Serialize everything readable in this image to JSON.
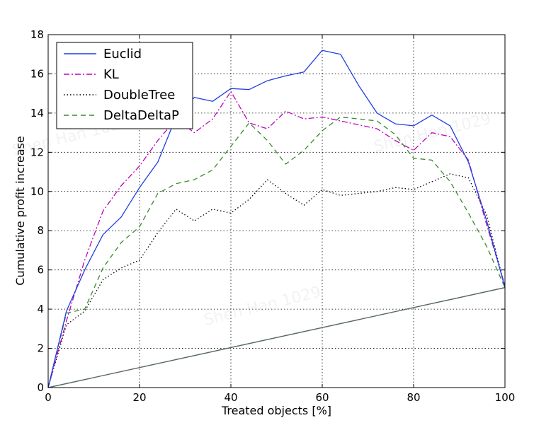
{
  "chart_data": {
    "type": "line",
    "title": "",
    "xlabel": "Treated objects [%]",
    "ylabel": "Cumulative profit increase",
    "xlim": [
      0,
      100
    ],
    "ylim": [
      0,
      18
    ],
    "xticks": [
      0,
      20,
      40,
      60,
      80,
      100
    ],
    "yticks": [
      0,
      2,
      4,
      6,
      8,
      10,
      12,
      14,
      16,
      18
    ],
    "grid": true,
    "legend_position": "top-left",
    "x": [
      0,
      4,
      8,
      12,
      16,
      20,
      24,
      28,
      32,
      36,
      40,
      44,
      48,
      52,
      56,
      60,
      64,
      68,
      72,
      76,
      80,
      84,
      88,
      92,
      96,
      100
    ],
    "series": [
      {
        "name": "Euclid",
        "color": "#1f3fe0",
        "style": "solid",
        "values": [
          0,
          3.9,
          6.0,
          7.8,
          8.7,
          10.2,
          11.5,
          13.8,
          14.8,
          14.6,
          15.25,
          15.2,
          15.65,
          15.9,
          16.1,
          17.2,
          17.0,
          15.4,
          14.0,
          13.45,
          13.35,
          13.9,
          13.35,
          11.5,
          8.5,
          5.1
        ]
      },
      {
        "name": "KL",
        "color": "#bf00bf",
        "style": "dashdot",
        "values": [
          0,
          3.4,
          6.5,
          9.0,
          10.3,
          11.3,
          12.6,
          13.7,
          13.0,
          13.7,
          15.1,
          13.5,
          13.2,
          14.1,
          13.7,
          13.8,
          13.6,
          13.4,
          13.2,
          12.6,
          12.1,
          13.0,
          12.8,
          11.6,
          8.3,
          5.2
        ]
      },
      {
        "name": "DoubleTree",
        "color": "#000000",
        "style": "dotted",
        "values": [
          0,
          3.2,
          3.9,
          5.5,
          6.1,
          6.5,
          7.9,
          9.1,
          8.5,
          9.1,
          8.9,
          9.6,
          10.6,
          9.9,
          9.3,
          10.1,
          9.8,
          9.9,
          10.0,
          10.2,
          10.1,
          10.5,
          10.9,
          10.7,
          8.8,
          5.1
        ]
      },
      {
        "name": "DeltaDeltaP",
        "color": "#3a8a2a",
        "style": "dashed",
        "values": [
          0,
          3.8,
          4.0,
          6.1,
          7.4,
          8.2,
          9.9,
          10.4,
          10.6,
          11.1,
          12.3,
          13.5,
          12.6,
          11.4,
          12.1,
          13.1,
          13.8,
          13.7,
          13.6,
          12.9,
          11.7,
          11.6,
          10.5,
          8.9,
          7.2,
          5.1
        ]
      }
    ],
    "baseline": {
      "x": [
        0,
        100
      ],
      "values": [
        0,
        5.1
      ],
      "colors": [
        "#1f3fe0",
        "#bf00bf",
        "#3a8a2a"
      ]
    }
  },
  "watermarks": [
    "Shen Han 1029",
    "Shen Han 1029",
    "Shen Han 1029"
  ]
}
